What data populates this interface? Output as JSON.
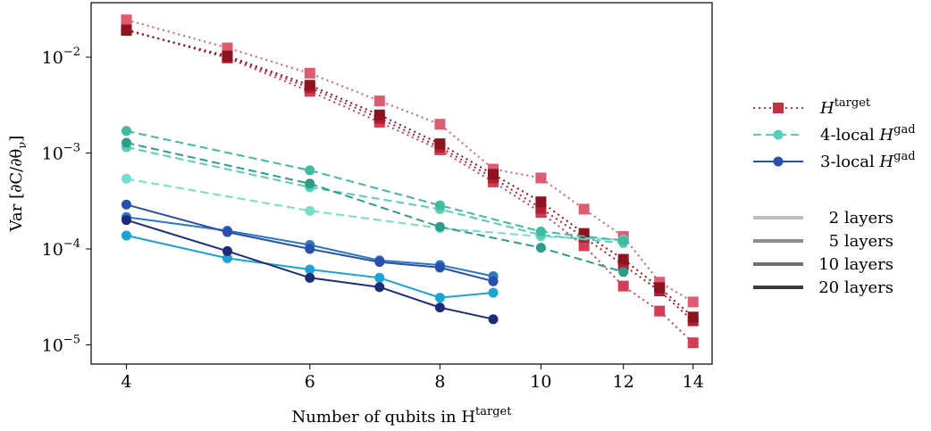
{
  "chart_data": {
    "type": "line",
    "title": "",
    "xlabel": "Number of qubits in H",
    "xlabel_sup": "target",
    "ylabel": "Var [∂C/∂θ",
    "ylabel_sub": "ν",
    "ylabel_close": "]",
    "yscale": "log",
    "xlim": [
      3.7,
      14.6
    ],
    "ylim": [
      6.3e-06,
      0.037
    ],
    "x_ticks": [
      4,
      6,
      8,
      10,
      12,
      14
    ],
    "x_tick_labels": [
      "4",
      "6",
      "8",
      "10",
      "12",
      "14"
    ],
    "y_ticks": [
      {
        "value": 0.01,
        "base": "10",
        "exp": "−2"
      },
      {
        "value": 0.001,
        "base": "10",
        "exp": "−3"
      },
      {
        "value": 0.0001,
        "base": "10",
        "exp": "−4"
      },
      {
        "value": 1e-05,
        "base": "10",
        "exp": "−5"
      }
    ],
    "grid": false,
    "legend_position": "right",
    "series": [
      {
        "group": "target",
        "layers": 2,
        "color": "#e05a70",
        "x": [
          4,
          5,
          6,
          7,
          8,
          9,
          10,
          11,
          12,
          13,
          14
        ],
        "y": [
          0.0245,
          0.0125,
          0.0068,
          0.0035,
          0.002,
          0.00068,
          0.00055,
          0.00026,
          0.000135,
          4.5e-05,
          2.8e-05
        ]
      },
      {
        "group": "target",
        "layers": 5,
        "color": "#d53c55",
        "x": [
          4,
          5,
          6,
          7,
          8,
          9,
          10,
          11,
          12,
          13,
          14
        ],
        "y": [
          0.0195,
          0.0098,
          0.0044,
          0.0021,
          0.00108,
          0.0005,
          0.00024,
          0.000108,
          4.1e-05,
          2.25e-05,
          1.05e-05
        ]
      },
      {
        "group": "target",
        "layers": 10,
        "color": "#b51e2e",
        "x": [
          4,
          5,
          6,
          7,
          8,
          9,
          10,
          11,
          12,
          13,
          14
        ],
        "y": [
          0.0192,
          0.01,
          0.0048,
          0.0023,
          0.00115,
          0.00055,
          0.000265,
          0.000132,
          6.8e-05,
          3.65e-05,
          1.78e-05
        ]
      },
      {
        "group": "target",
        "layers": 20,
        "color": "#8e1220",
        "x": [
          4,
          5,
          6,
          7,
          8,
          9,
          10,
          11,
          12,
          13,
          14
        ],
        "y": [
          0.019,
          0.0103,
          0.0051,
          0.0025,
          0.00125,
          0.0006,
          0.00031,
          0.000145,
          7.8e-05,
          3.95e-05,
          1.95e-05
        ]
      },
      {
        "group": "4-local",
        "layers": 2,
        "color": "#72e0cc",
        "x": [
          4,
          6,
          8,
          10,
          12
        ],
        "y": [
          0.00054,
          0.00025,
          0.000165,
          0.000135,
          0.000125
        ]
      },
      {
        "group": "4-local",
        "layers": 5,
        "color": "#55cfb8",
        "x": [
          4,
          6,
          8,
          10,
          12
        ],
        "y": [
          0.00115,
          0.00044,
          0.00026,
          0.00014,
          0.000115
        ]
      },
      {
        "group": "4-local",
        "layers": 10,
        "color": "#3dbba3",
        "x": [
          4,
          6,
          8,
          10,
          12
        ],
        "y": [
          0.0017,
          0.00066,
          0.000285,
          0.000152,
          0.000122
        ]
      },
      {
        "group": "4-local",
        "layers": 20,
        "color": "#2a9e88",
        "x": [
          4,
          6,
          8,
          10,
          12
        ],
        "y": [
          0.00128,
          0.00048,
          0.00017,
          0.000103,
          5.75e-05
        ]
      },
      {
        "group": "3-local",
        "layers": 2,
        "color": "#1aa3d6",
        "x": [
          4,
          5,
          6,
          7,
          8,
          9
        ],
        "y": [
          0.000138,
          8e-05,
          6.1e-05,
          5e-05,
          3.1e-05,
          3.5e-05
        ]
      },
      {
        "group": "3-local",
        "layers": 5,
        "color": "#2878c2",
        "x": [
          4,
          5,
          6,
          7,
          8,
          9
        ],
        "y": [
          0.000215,
          0.000155,
          0.00011,
          7.6e-05,
          6.8e-05,
          5.2e-05
        ]
      },
      {
        "group": "3-local",
        "layers": 10,
        "color": "#2a4db0",
        "x": [
          4,
          5,
          6,
          7,
          8,
          9
        ],
        "y": [
          0.00029,
          0.00015,
          0.0001,
          7.3e-05,
          6.4e-05,
          4.6e-05
        ]
      },
      {
        "group": "3-local",
        "layers": 20,
        "color": "#1c2c78",
        "x": [
          4,
          5,
          6,
          7,
          8,
          9
        ],
        "y": [
          0.0002,
          9.5e-05,
          5e-05,
          4e-05,
          2.45e-05,
          1.85e-05
        ]
      }
    ],
    "legend_groups": [
      {
        "key": "target",
        "label_prefix": "",
        "label_main": "H",
        "label_sup": "target",
        "color": "#c8303f",
        "style": "dotted",
        "marker": "square"
      },
      {
        "key": "4-local",
        "label_prefix": "4-local ",
        "label_main": "H",
        "label_sup": "gad",
        "color": "#55cfb8",
        "style": "dashed",
        "marker": "circle"
      },
      {
        "key": "3-local",
        "label_prefix": "3-local ",
        "label_main": "H",
        "label_sup": "gad",
        "color": "#2a4db0",
        "style": "solid",
        "marker": "circle"
      }
    ],
    "legend_layers": [
      {
        "label": "2 layers",
        "color": "#bdbdbd"
      },
      {
        "label": "5 layers",
        "color": "#8c8c8c"
      },
      {
        "label": "10 layers",
        "color": "#6e6e6e"
      },
      {
        "label": "20 layers",
        "color": "#3a3a3a"
      }
    ]
  }
}
